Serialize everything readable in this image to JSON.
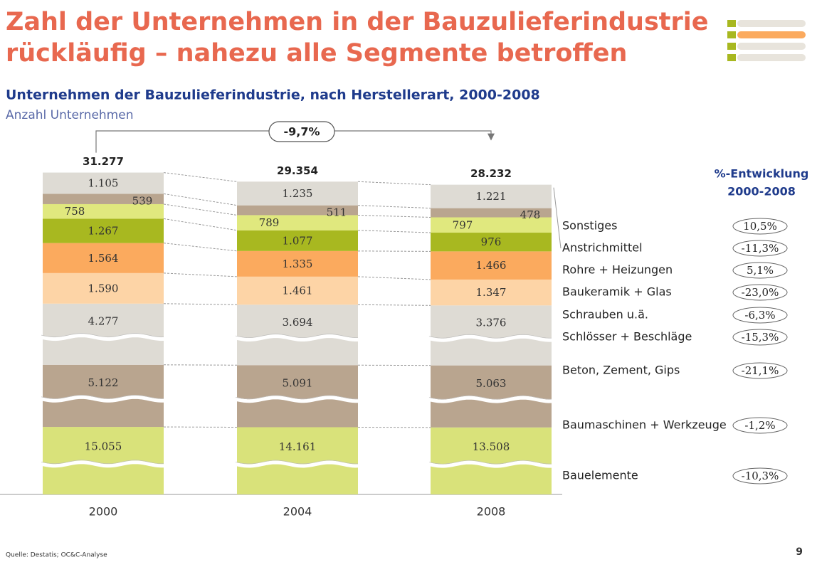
{
  "chart_data": {
    "type": "bar",
    "stacked": true,
    "title": [
      "Zahl der Unternehmen in der Bauzulieferindustrie",
      "rückläufig – nahezu alle Segmente betroffen"
    ],
    "subtitle": "Unternehmen der Bauzulieferindustrie, nach Herstellerart, 2000-2008",
    "unit_label": "Anzahl Unternehmen",
    "categories": [
      "2000",
      "2004",
      "2008"
    ],
    "series": [
      {
        "name": "Bauelemente",
        "color": "#d9e27a",
        "values": [
          15055,
          14161,
          13508
        ],
        "value_labels": [
          "15.055",
          "14.161",
          "13.508"
        ],
        "change": -10.3,
        "change_label": "-10,3%"
      },
      {
        "name": "Baumaschinen + Werkzeuge",
        "color": "#b9a58f",
        "values": [
          5122,
          5091,
          5063
        ],
        "value_labels": [
          "5.122",
          "5.091",
          "5.063"
        ],
        "change": -1.2,
        "change_label": "-1,2%"
      },
      {
        "name": "Beton, Zement, Gips",
        "color": "#dedbd4",
        "values": [
          4277,
          3694,
          3376
        ],
        "value_labels": [
          "4.277",
          "3.694",
          "3.376"
        ],
        "change": -21.1,
        "change_label": "-21,1%"
      },
      {
        "name": "Schlösser + Beschläge",
        "color": "#fdd4a6",
        "values": [
          1590,
          1461,
          1347
        ],
        "value_labels": [
          "1.590",
          "1.461",
          "1.347"
        ],
        "change": -15.3,
        "change_label": "-15,3%"
      },
      {
        "name": "Schrauben u.ä.",
        "color": "#fbaa5e",
        "values": [
          1564,
          1335,
          1466
        ],
        "value_labels": [
          "1.564",
          "1.335",
          "1.466"
        ],
        "change": -6.3,
        "change_label": "-6,3%"
      },
      {
        "name": "Baukeramik + Glas",
        "color": "#a8b820",
        "values": [
          1267,
          1077,
          976
        ],
        "value_labels": [
          "1.267",
          "1.077"
        ],
        "change": -23.0,
        "change_label": "-23,0%"
      },
      {
        "name": "Rohre + Heizungen",
        "color": "#e0e87e",
        "values": [
          758,
          789,
          797
        ],
        "change": 5.1,
        "change_label": "5,1%"
      },
      {
        "name": "Anstrichmittel",
        "color": "#b9a58f",
        "values": [
          539,
          511,
          478
        ],
        "change": -11.3,
        "change_label": "-11,3%"
      },
      {
        "name": "Sonstiges",
        "color": "#dedbd4",
        "values": [
          1105,
          1235,
          1221
        ],
        "value_labels": [
          "1.105",
          "1.235",
          "1.221"
        ],
        "change": 10.5,
        "change_label": "10,5%"
      }
    ],
    "totals": {
      "values": [
        31277,
        29354,
        28232
      ],
      "value_labels": [
        "31.277",
        "29.354",
        "28.232"
      ]
    },
    "total_change": {
      "value": -9.7,
      "label": "-9,7%"
    },
    "change_title": [
      "%-Entwicklung",
      "2000-2008"
    ],
    "source": "Quelle: Destatis; OC&C-Analyse",
    "page": "9"
  }
}
